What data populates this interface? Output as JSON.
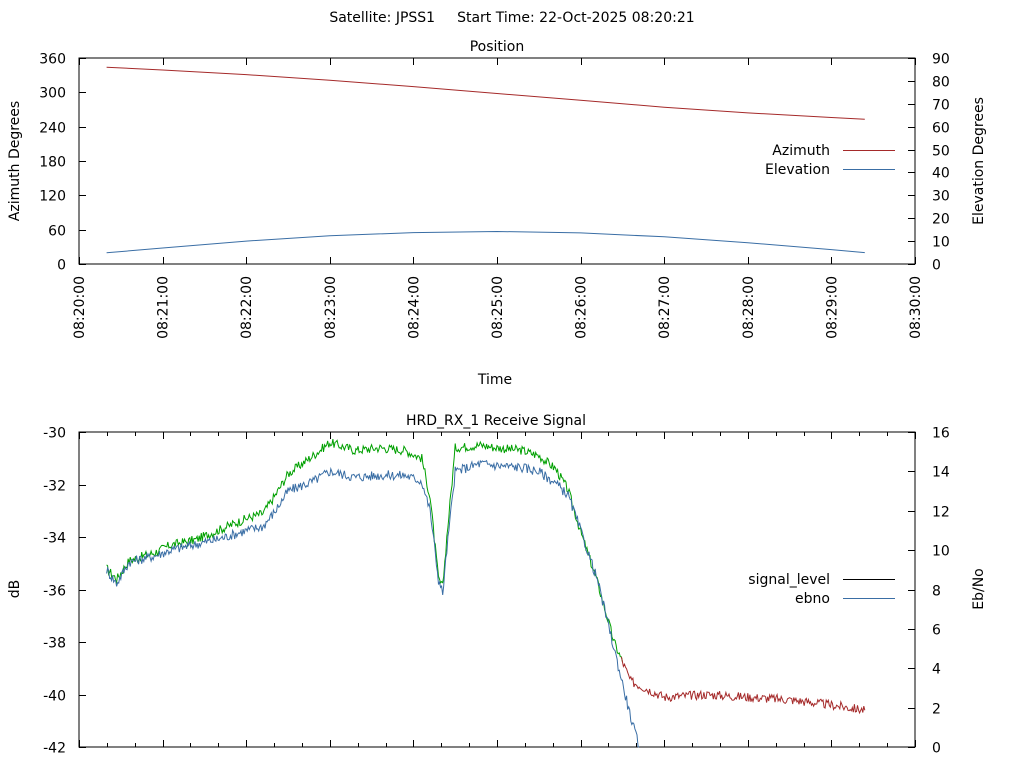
{
  "header": {
    "satellite": "Satellite: JPSS1",
    "start_time": "Start Time: 22-Oct-2025 08:20:21"
  },
  "chart_data": [
    {
      "type": "line",
      "title": "Position",
      "xlabel": "Time",
      "ylabel": "Azimuth Degrees",
      "y2label": "Elevation Degrees",
      "x_ticks": [
        "08:20:00",
        "08:21:00",
        "08:22:00",
        "08:23:00",
        "08:24:00",
        "08:25:00",
        "08:26:00",
        "08:27:00",
        "08:28:00",
        "08:29:00",
        "08:30:00"
      ],
      "xlim_minutes": [
        0,
        10
      ],
      "ylim": [
        0,
        360
      ],
      "y_ticks": [
        0,
        60,
        120,
        180,
        240,
        300,
        360
      ],
      "y2lim": [
        0,
        90
      ],
      "y2_ticks": [
        0,
        10,
        20,
        30,
        40,
        50,
        60,
        70,
        80,
        90
      ],
      "legend_position": "right",
      "series": [
        {
          "name": "Azimuth",
          "axis": "y",
          "color": "#a52a2a",
          "x": [
            0.33,
            1,
            2,
            3,
            4,
            5,
            6,
            7,
            8,
            9,
            9.4
          ],
          "values": [
            344,
            339,
            331,
            321,
            310,
            298,
            286,
            274,
            264,
            256,
            253
          ]
        },
        {
          "name": "Elevation",
          "axis": "y2",
          "color": "#3a6ea5",
          "x": [
            0.33,
            1,
            2,
            3,
            4,
            5,
            6,
            7,
            8,
            9,
            9.4
          ],
          "values": [
            4.9,
            7.0,
            10.0,
            12.3,
            13.7,
            14.2,
            13.6,
            11.9,
            9.3,
            6.3,
            5.0
          ]
        }
      ]
    },
    {
      "type": "line",
      "title": "HRD_RX_1 Receive Signal",
      "ylabel": "dB",
      "y2label": "Eb/No",
      "xlim_minutes": [
        0,
        10
      ],
      "ylim": [
        -42,
        -30
      ],
      "y_ticks": [
        -42,
        -40,
        -38,
        -36,
        -34,
        -32,
        -30
      ],
      "y2lim": [
        0,
        16
      ],
      "y2_ticks": [
        0,
        2,
        4,
        6,
        8,
        10,
        12,
        14,
        16
      ],
      "legend_position": "right",
      "series": [
        {
          "name": "signal_level",
          "axis": "y",
          "color": "#a52a2a",
          "color_when_locked": "#00a000",
          "x": [
            0.33,
            0.45,
            0.6,
            0.9,
            1.1,
            1.4,
            1.7,
            2.0,
            2.2,
            2.35,
            2.5,
            2.8,
            3.0,
            3.3,
            3.6,
            3.9,
            4.1,
            4.2,
            4.3,
            4.35,
            4.4,
            4.5,
            4.8,
            5.0,
            5.3,
            5.5,
            5.7,
            5.85,
            6.0,
            6.2,
            6.4,
            6.6,
            7.0,
            7.5,
            8.0,
            8.5,
            9.0,
            9.4
          ],
          "values": [
            -35.2,
            -35.6,
            -34.9,
            -34.6,
            -34.3,
            -34.1,
            -33.7,
            -33.3,
            -33.1,
            -32.4,
            -31.6,
            -30.9,
            -30.4,
            -30.7,
            -30.6,
            -30.7,
            -31.0,
            -32.5,
            -35.6,
            -35.9,
            -34.0,
            -30.6,
            -30.5,
            -30.6,
            -30.7,
            -30.9,
            -31.4,
            -32.2,
            -33.8,
            -35.7,
            -38.0,
            -39.5,
            -40.1,
            -40.0,
            -40.1,
            -40.2,
            -40.4,
            -40.6
          ],
          "locked_until_minutes": 6.5
        },
        {
          "name": "ebno",
          "axis": "y2",
          "color": "#3a6ea5",
          "x": [
            0.33,
            0.45,
            0.6,
            0.9,
            1.1,
            1.4,
            1.7,
            2.0,
            2.2,
            2.35,
            2.5,
            2.8,
            3.0,
            3.3,
            3.6,
            3.9,
            4.1,
            4.2,
            4.3,
            4.35,
            4.4,
            4.5,
            4.8,
            5.0,
            5.3,
            5.5,
            5.7,
            5.85,
            6.0,
            6.2,
            6.4,
            6.6,
            6.7
          ],
          "values": [
            9.0,
            8.3,
            9.4,
            9.7,
            10.0,
            10.3,
            10.6,
            11.0,
            11.2,
            12.0,
            13.0,
            13.5,
            14.0,
            13.7,
            13.8,
            13.8,
            13.5,
            12.0,
            8.5,
            7.8,
            10.0,
            14.0,
            14.4,
            14.3,
            14.2,
            14.0,
            13.4,
            12.8,
            11.0,
            8.5,
            5.0,
            1.5,
            0.0
          ]
        }
      ]
    }
  ]
}
